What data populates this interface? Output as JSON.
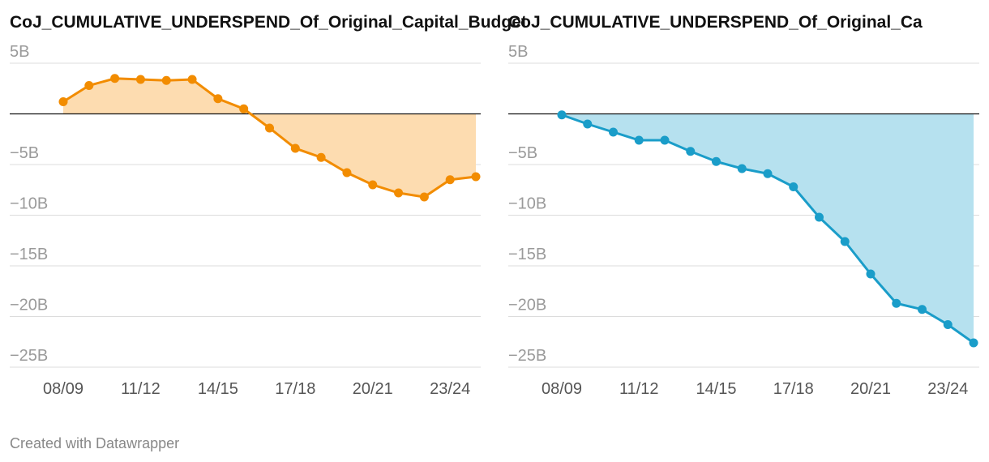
{
  "chart_data": [
    {
      "type": "area",
      "title": "CoJ_CUMULATIVE_UNDERSPEND_Of_Original_Capital_Budget",
      "categories": [
        "08/09",
        null,
        null,
        "11/12",
        null,
        null,
        "14/15",
        null,
        null,
        "17/18",
        null,
        null,
        "20/21",
        null,
        null,
        "23/24",
        null
      ],
      "values": [
        1.2,
        2.8,
        3.5,
        3.4,
        3.3,
        3.4,
        1.5,
        0.5,
        -1.4,
        -3.4,
        -4.3,
        -5.8,
        -7.0,
        -7.8,
        -8.2,
        -6.5,
        -6.2
      ],
      "color": "#f28c00",
      "fill_color": "#fddcb0",
      "ylim": [
        -25,
        5
      ],
      "yticks": [
        {
          "value": 5,
          "label": "5B"
        },
        {
          "value": -5,
          "label": "−5B"
        },
        {
          "value": -10,
          "label": "−10B"
        },
        {
          "value": -15,
          "label": "−15B"
        },
        {
          "value": -20,
          "label": "−20B"
        },
        {
          "value": -25,
          "label": "−25B"
        }
      ],
      "grid": true
    },
    {
      "type": "area",
      "title": "CoJ_CUMULATIVE_UNDERSPEND_Of_Original_Ca",
      "categories": [
        "08/09",
        null,
        null,
        "11/12",
        null,
        null,
        "14/15",
        null,
        null,
        "17/18",
        null,
        null,
        "20/21",
        null,
        null,
        "23/24",
        null
      ],
      "values": [
        -0.1,
        -1.0,
        -1.8,
        -2.6,
        -2.6,
        -3.7,
        -4.7,
        -5.4,
        -5.9,
        -7.2,
        -10.2,
        -12.6,
        -15.8,
        -18.7,
        -19.3,
        -20.8,
        -22.6
      ],
      "color": "#1a9dc9",
      "fill_color": "#b6e1ef",
      "ylim": [
        -25,
        5
      ],
      "yticks": [
        {
          "value": 5,
          "label": "5B"
        },
        {
          "value": -5,
          "label": "−5B"
        },
        {
          "value": -10,
          "label": "−10B"
        },
        {
          "value": -15,
          "label": "−15B"
        },
        {
          "value": -20,
          "label": "−20B"
        },
        {
          "value": -25,
          "label": "−25B"
        }
      ],
      "grid": true
    }
  ],
  "footer": "Created with Datawrapper"
}
